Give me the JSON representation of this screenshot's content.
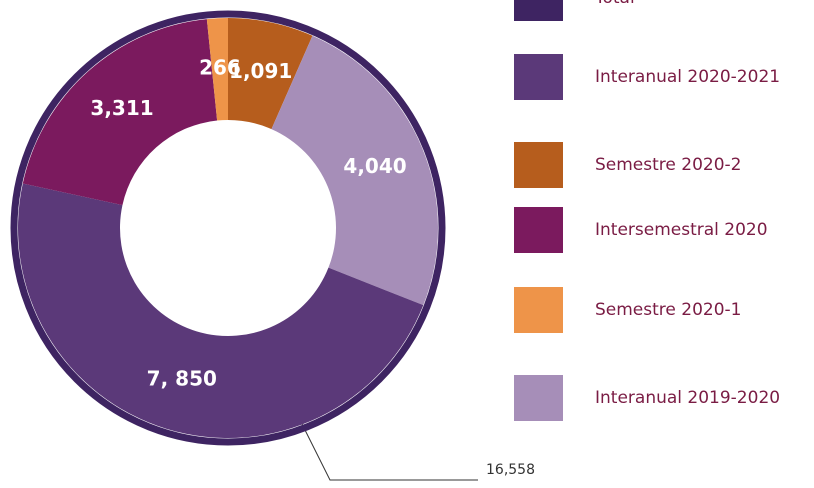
{
  "chart_data": {
    "type": "donut",
    "slices": {
      "values": [
        1091,
        4040,
        7850,
        3311,
        266
      ],
      "value_labels": [
        "1,091",
        "4,040",
        "7, 850",
        "3,311",
        "266"
      ],
      "colors": [
        "#b65d1d",
        "#a68eb8",
        "#5b3979",
        "#7b1a5e",
        "#ee9449"
      ]
    },
    "total": {
      "value": 16558,
      "label": "16,558",
      "color": "#3e2462"
    },
    "legend": [
      {
        "name": "Total",
        "color": "#3e2462"
      },
      {
        "name": "Interanual 2020-2021",
        "color": "#5b3979"
      },
      {
        "name": "Semestre 2020-2",
        "color": "#b65d1d"
      },
      {
        "name": "Intersemestral 2020",
        "color": "#7b1a5e"
      },
      {
        "name": "Semestre 2020-1",
        "color": "#ee9449"
      },
      {
        "name": "Interanual 2019-2020",
        "color": "#a68eb8"
      }
    ]
  }
}
